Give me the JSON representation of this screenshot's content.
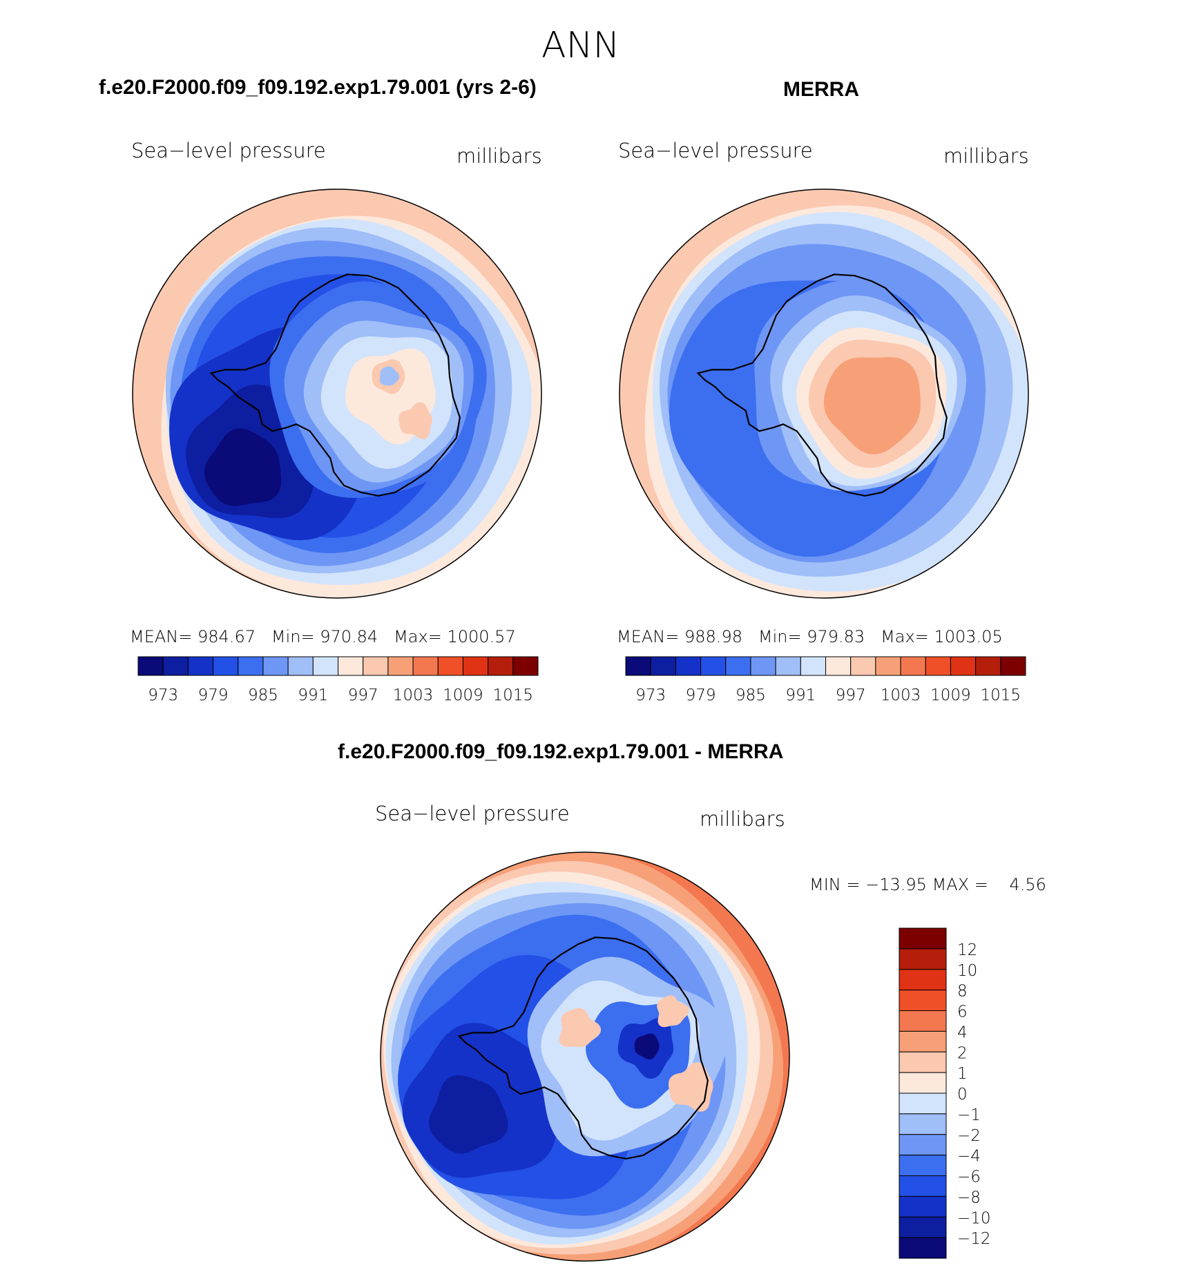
{
  "figure": {
    "title": "ANN"
  },
  "panels": [
    {
      "id": "model",
      "case_title": "f.e20.F2000.f09_f09.192.exp1.79.001 (yrs 2-6)",
      "variable": "Sea−level pressure",
      "units": "millibars",
      "stats": {
        "mean_label": "MEAN=",
        "mean": "984.67",
        "min_label": "Min=",
        "min": "970.84",
        "max_label": "Max=",
        "max": "1000.57"
      },
      "colorbar_ticks": [
        "973",
        "979",
        "985",
        "991",
        "997",
        "1003",
        "1009",
        "1015"
      ],
      "field_summary": {
        "center_value": 996,
        "ross_sea_low": 970.84,
        "rim_value": 1000.57
      }
    },
    {
      "id": "obs",
      "case_title": "MERRA",
      "variable": "Sea−level pressure",
      "units": "millibars",
      "stats": {
        "mean_label": "MEAN=",
        "mean": "988.98",
        "min_label": "Min=",
        "min": "979.83",
        "max_label": "Max=",
        "max": "1003.05"
      },
      "colorbar_ticks": [
        "973",
        "979",
        "985",
        "991",
        "997",
        "1003",
        "1009",
        "1015"
      ],
      "field_summary": {
        "center_value": 1003,
        "ross_sea_low": 979.83,
        "rim_value": 1003.05
      }
    },
    {
      "id": "diff",
      "case_title": "f.e20.F2000.f09_f09.192.exp1.79.001 - MERRA",
      "variable": "Sea−level pressure",
      "units": "millibars",
      "stats": {
        "min_label": "MIN =",
        "min": "−13.95",
        "max_label": "MAX =",
        "max": "4.56"
      },
      "colorbar_ticks": [
        "12",
        "10",
        "8",
        "6",
        "4",
        "2",
        "1",
        "0",
        "−1",
        "−2",
        "−4",
        "−6",
        "−8",
        "−10",
        "−12"
      ],
      "field_summary": {
        "min": -13.95,
        "max": 4.56
      }
    }
  ],
  "colors": {
    "abs_scale": [
      "#0a0a78",
      "#0e1ea0",
      "#1432c8",
      "#2350e6",
      "#3c6ef0",
      "#6e96f5",
      "#a0bef8",
      "#d2e4fc",
      "#fde8dc",
      "#fbc8b0",
      "#f7a078",
      "#f37850",
      "#f05028",
      "#e03214",
      "#b41e0a",
      "#7d0000"
    ],
    "diff_scale": [
      "#0a0a78",
      "#0e1ea0",
      "#1432c8",
      "#2350e6",
      "#3c6ef0",
      "#6e96f5",
      "#a0bef8",
      "#d2e4fc",
      "#fde8dc",
      "#fbc8b0",
      "#f7a078",
      "#f37850",
      "#f05028",
      "#e03214",
      "#b41e0a",
      "#7d0000"
    ],
    "coastline": "#000000"
  },
  "chart_data": [
    {
      "type": "heatmap",
      "title": "f.e20.F2000.f09_f09.192.exp1.79.001 (yrs 2-6)",
      "mean": 984.67,
      "min": 970.84,
      "max": 1000.57,
      "levels": [
        973,
        976,
        979,
        982,
        985,
        988,
        991,
        994,
        997,
        1000,
        1003,
        1006,
        1009,
        1012,
        1015
      ]
    },
    {
      "type": "heatmap",
      "title": "MERRA",
      "mean": 988.98,
      "min": 979.83,
      "max": 1003.05,
      "levels": [
        973,
        976,
        979,
        982,
        985,
        988,
        991,
        994,
        997,
        1000,
        1003,
        1006,
        1009,
        1012,
        1015
      ]
    },
    {
      "type": "heatmap",
      "title": "f.e20.F2000.f09_f09.192.exp1.79.001 - MERRA",
      "min": -13.95,
      "max": 4.56,
      "levels": [
        -12,
        -10,
        -8,
        -6,
        -4,
        -2,
        -1,
        0,
        1,
        2,
        4,
        6,
        8,
        10,
        12
      ]
    }
  ]
}
